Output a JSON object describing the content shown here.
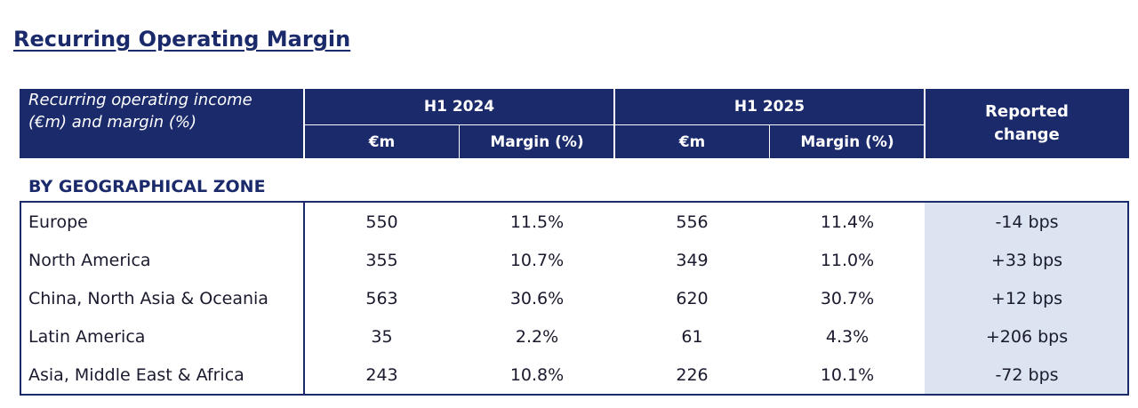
{
  "title": "Recurring Operating Margin",
  "header": {
    "label_line1": "Recurring operating income",
    "label_line2": "(€m) and margin (%)",
    "h1_2024": "H1 2024",
    "h1_2025": "H1 2025",
    "col_eur": "€m",
    "col_margin": "Margin (%)",
    "reported_line1": "Reported",
    "reported_line2": "change"
  },
  "section_label": "BY GEOGRAPHICAL ZONE",
  "rows": [
    {
      "zone": "Europe",
      "eur_2024": "550",
      "margin_2024": "11.5%",
      "eur_2025": "556",
      "margin_2025": "11.4%",
      "change": "-14 bps"
    },
    {
      "zone": "North America",
      "eur_2024": "355",
      "margin_2024": "10.7%",
      "eur_2025": "349",
      "margin_2025": "11.0%",
      "change": "+33 bps"
    },
    {
      "zone": "China, North Asia & Oceania",
      "eur_2024": "563",
      "margin_2024": "30.6%",
      "eur_2025": "620",
      "margin_2025": "30.7%",
      "change": "+12 bps"
    },
    {
      "zone": "Latin America",
      "eur_2024": "35",
      "margin_2024": "2.2%",
      "eur_2025": "61",
      "margin_2025": "4.3%",
      "change": "+206 bps"
    },
    {
      "zone": "Asia, Middle East & Africa",
      "eur_2024": "243",
      "margin_2024": "10.8%",
      "eur_2025": "226",
      "margin_2025": "10.1%",
      "change": "-72 bps"
    }
  ],
  "colors": {
    "navy": "#1b2a6b",
    "shade": "#dbe4f0"
  }
}
